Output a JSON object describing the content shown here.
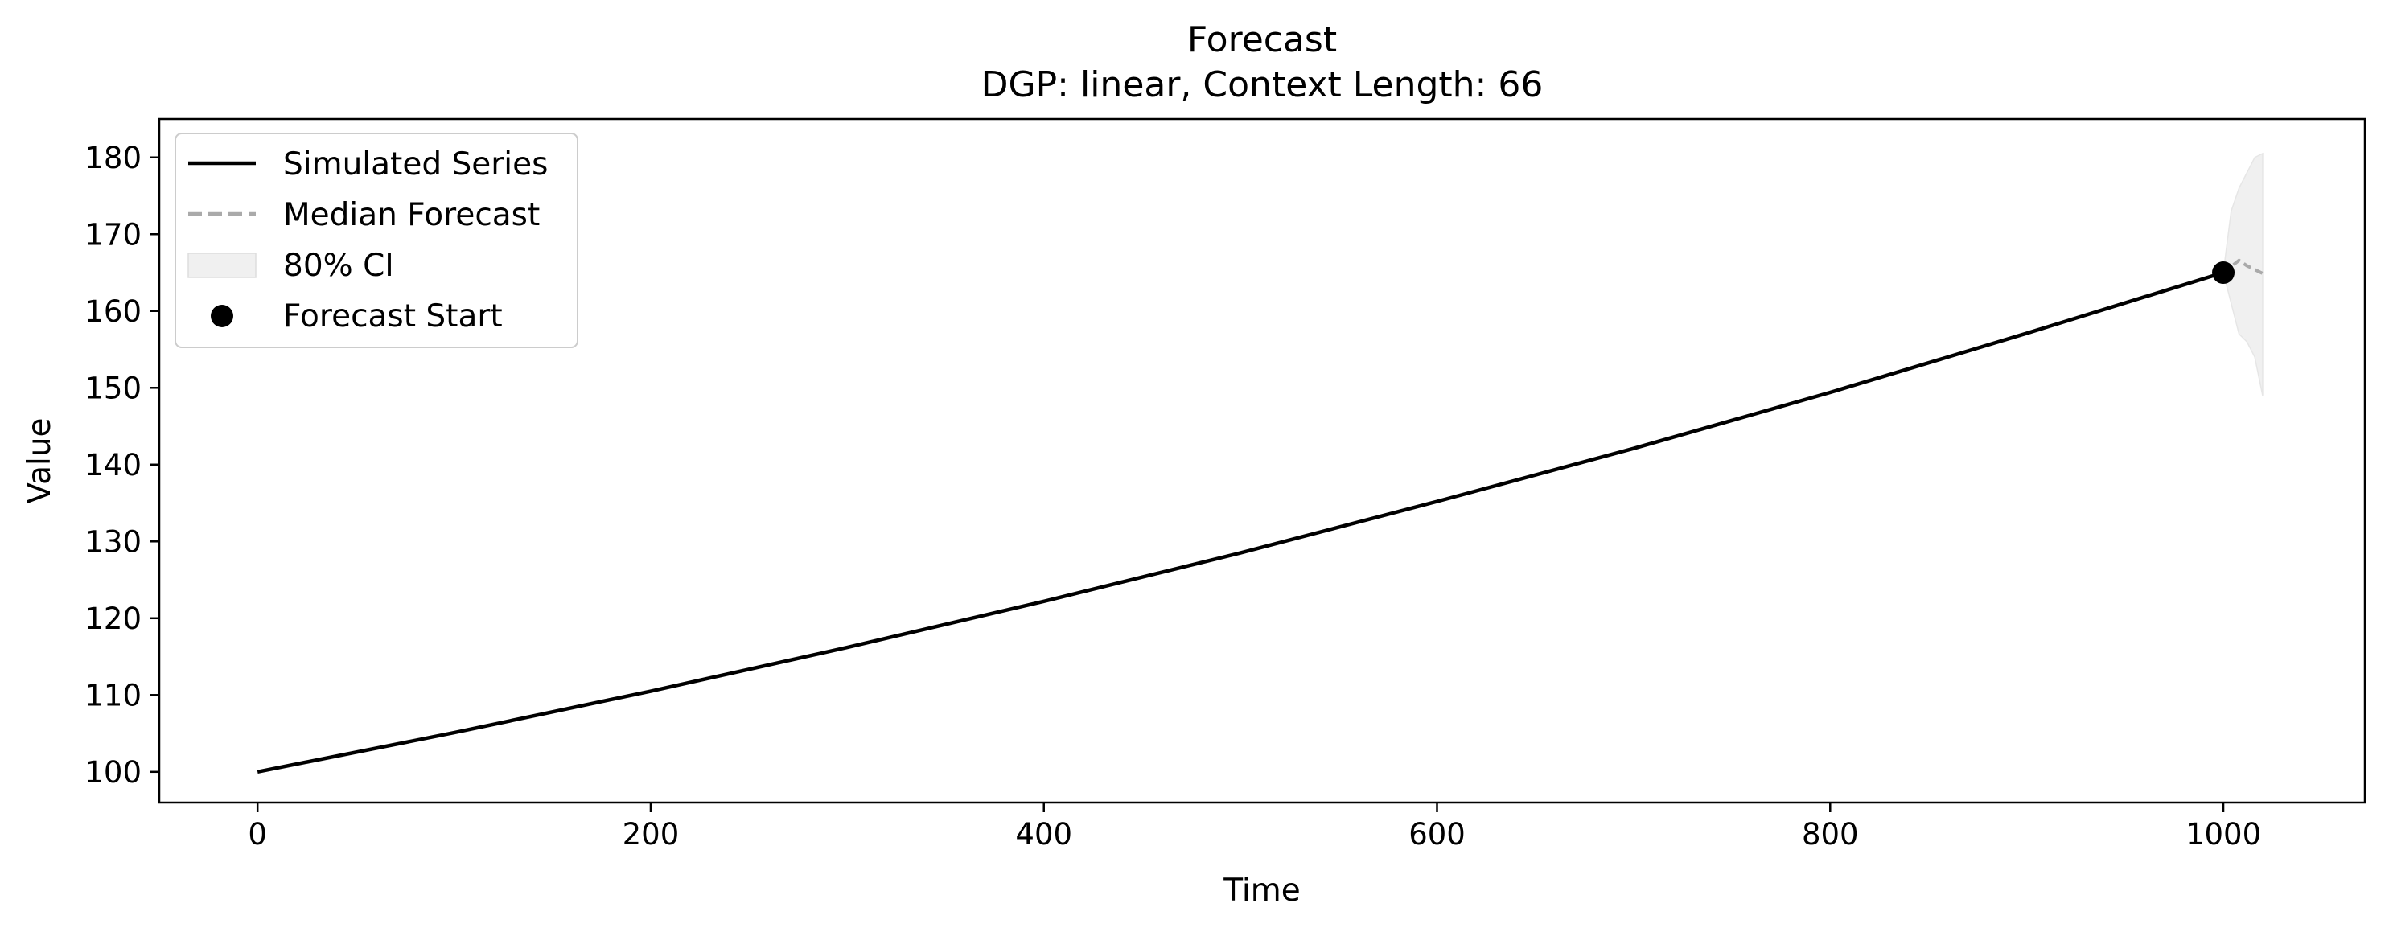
{
  "chart_data": {
    "type": "line",
    "title": "Forecast",
    "subtitle": "DGP: linear, Context Length: 66",
    "xlabel": "Time",
    "ylabel": "Value",
    "xlim": [
      -50,
      1072
    ],
    "ylim": [
      96,
      185
    ],
    "xticks": [
      0,
      200,
      400,
      600,
      800,
      1000
    ],
    "yticks": [
      100,
      110,
      120,
      130,
      140,
      150,
      160,
      170,
      180
    ],
    "grid": false,
    "legend_position": "upper-left",
    "legend": {
      "simulated": "Simulated Series",
      "median": "Median Forecast",
      "ci": "80% CI",
      "start": "Forecast Start"
    },
    "series": [
      {
        "name": "Simulated Series",
        "color": "#000000",
        "style": "solid",
        "x": [
          0,
          100,
          200,
          300,
          400,
          500,
          600,
          700,
          800,
          900,
          1000
        ],
        "y": [
          100.0,
          105.1,
          110.5,
          116.2,
          122.2,
          128.5,
          135.2,
          142.1,
          149.4,
          157.1,
          165.0
        ]
      },
      {
        "name": "Median Forecast",
        "color": "#aaaaaa",
        "style": "dashed",
        "x": [
          1000,
          1004,
          1008,
          1012,
          1016,
          1020
        ],
        "y": [
          165.0,
          165.8,
          166.6,
          165.9,
          165.4,
          164.9
        ]
      }
    ],
    "band": {
      "name": "80% CI",
      "color": "#f0f0f0",
      "x": [
        1000,
        1004,
        1008,
        1012,
        1016,
        1020
      ],
      "lower": [
        165.0,
        161.0,
        157.0,
        156.0,
        154.0,
        149.0
      ],
      "upper": [
        165.0,
        173.0,
        176.0,
        178.0,
        180.0,
        180.5
      ]
    },
    "start_point": {
      "name": "Forecast Start",
      "x": 1000,
      "y": 165.0,
      "color": "#000000"
    }
  }
}
